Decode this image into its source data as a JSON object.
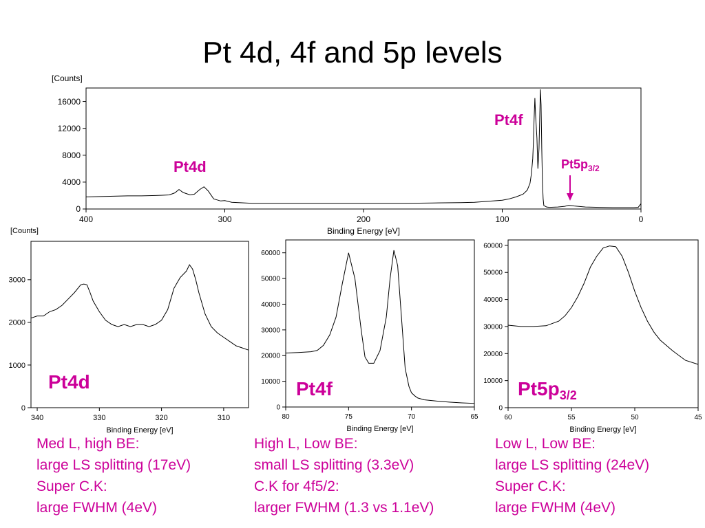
{
  "title": "Pt 4d, 4f and 5p levels",
  "colors": {
    "annotation": "#cc0099",
    "trace": "#000000"
  },
  "chart_data": [
    {
      "id": "survey",
      "type": "line",
      "ylabel": "[Counts]",
      "xlabel": "Binding Energy [eV]",
      "xlim": [
        400,
        0
      ],
      "ylim": [
        0,
        18000
      ],
      "xticks": [
        "400",
        "300",
        "200",
        "100",
        "0"
      ],
      "yticks": [
        "0",
        "4000",
        "8000",
        "12000",
        "16000"
      ],
      "annotations": {
        "pt4d": "Pt4d",
        "pt4f": "Pt4f",
        "pt5p_main": "Pt5p",
        "pt5p_sub": "3/2"
      },
      "series": [
        {
          "x": [
            402,
            390,
            380,
            370,
            360,
            350,
            345,
            340,
            336,
            333,
            330,
            325,
            322,
            318,
            315,
            312,
            308,
            303,
            300,
            295,
            290,
            285,
            280,
            270,
            250,
            230,
            200,
            170,
            150,
            130,
            120,
            110,
            100,
            95,
            90,
            85,
            82,
            80,
            79,
            78,
            77.5,
            77,
            76.5,
            76,
            75,
            74.3,
            73.5,
            73,
            72.5,
            72,
            71.5,
            71,
            70.5,
            70,
            69,
            68,
            66,
            60,
            55,
            52,
            48,
            40,
            30,
            20,
            10,
            5,
            2,
            0
          ],
          "y": [
            1800,
            1850,
            1900,
            1950,
            1950,
            2000,
            2050,
            2100,
            2400,
            2900,
            2450,
            2100,
            2200,
            2900,
            3300,
            2700,
            1500,
            1200,
            1250,
            1000,
            950,
            900,
            850,
            850,
            850,
            850,
            850,
            850,
            900,
            950,
            1000,
            1150,
            1300,
            1500,
            1800,
            2200,
            2800,
            3800,
            5200,
            7500,
            10000,
            13500,
            16500,
            14000,
            10500,
            6000,
            9000,
            13500,
            17800,
            15500,
            9000,
            4000,
            1500,
            500,
            400,
            300,
            250,
            300,
            400,
            550,
            450,
            300,
            250,
            200,
            200,
            200,
            250,
            800
          ]
        }
      ]
    },
    {
      "id": "pt4d",
      "type": "line",
      "ylabel": "[Counts]",
      "xlabel": "Binding Energy [eV]",
      "xlim": [
        341,
        306
      ],
      "ylim": [
        0,
        3900
      ],
      "xticks": [
        "340",
        "330",
        "320",
        "310"
      ],
      "yticks": [
        "0",
        "1000",
        "2000",
        "3000"
      ],
      "label": "Pt4d",
      "series": [
        {
          "x": [
            341,
            340,
            339,
            338,
            337,
            336,
            335,
            334,
            333,
            332.5,
            332,
            331.5,
            331,
            330,
            329,
            328,
            327,
            326,
            325,
            324,
            323,
            322,
            321,
            320,
            319,
            318,
            317,
            316,
            315.5,
            315,
            314.5,
            314,
            313.5,
            313,
            312,
            311,
            310,
            309,
            308,
            307,
            306
          ],
          "y": [
            2100,
            2150,
            2150,
            2250,
            2300,
            2400,
            2550,
            2700,
            2880,
            2900,
            2880,
            2700,
            2500,
            2250,
            2050,
            1950,
            1900,
            1950,
            1900,
            1950,
            1950,
            1900,
            1950,
            2050,
            2300,
            2800,
            3050,
            3200,
            3350,
            3250,
            3000,
            2700,
            2450,
            2200,
            1900,
            1750,
            1650,
            1550,
            1450,
            1400,
            1350
          ]
        }
      ]
    },
    {
      "id": "pt4f",
      "type": "line",
      "xlabel": "Binding Energy [eV]",
      "xlim": [
        80,
        65
      ],
      "ylim": [
        0,
        65000
      ],
      "xticks": [
        "80",
        "75",
        "70",
        "65"
      ],
      "yticks": [
        "0",
        "10000",
        "20000",
        "30000",
        "40000",
        "50000",
        "60000"
      ],
      "label": "Pt4f",
      "series": [
        {
          "x": [
            80,
            79,
            78,
            77.5,
            77,
            76.5,
            76,
            75.5,
            75,
            74.5,
            74,
            73.7,
            73.4,
            73,
            72.5,
            72,
            71.7,
            71.4,
            71.1,
            70.8,
            70.5,
            70.2,
            70,
            69.7,
            69.5,
            69,
            68,
            67,
            66,
            65
          ],
          "y": [
            21000,
            21200,
            21500,
            22000,
            24000,
            28000,
            35000,
            48000,
            60000,
            50000,
            30000,
            19500,
            17000,
            17000,
            22000,
            35000,
            50000,
            61000,
            55000,
            35000,
            15000,
            8000,
            5500,
            4200,
            3500,
            2800,
            2300,
            1900,
            1600,
            1400
          ]
        }
      ]
    },
    {
      "id": "pt5p",
      "type": "line",
      "xlabel": "Binding Energy [eV]",
      "xlim": [
        60,
        45
      ],
      "ylim": [
        0,
        62000
      ],
      "xticks": [
        "60",
        "55",
        "50",
        "45"
      ],
      "yticks": [
        "0",
        "10000",
        "20000",
        "30000",
        "40000",
        "50000",
        "60000"
      ],
      "label_main": "Pt5p",
      "label_sub": "3/2",
      "series": [
        {
          "x": [
            60,
            59,
            58,
            57,
            56,
            55.5,
            55,
            54.5,
            54,
            53.5,
            53,
            52.5,
            52,
            51.5,
            51,
            50.5,
            50,
            49.5,
            49,
            48.5,
            48,
            47,
            46,
            45
          ],
          "y": [
            30500,
            30000,
            30000,
            30300,
            32000,
            34000,
            37000,
            41000,
            46000,
            52000,
            56000,
            59000,
            59800,
            59500,
            56000,
            50000,
            43000,
            37000,
            32000,
            28000,
            25000,
            21000,
            17500,
            16000
          ]
        }
      ]
    }
  ],
  "notes": [
    {
      "lines": [
        "Med L, high BE:",
        "large LS splitting (17eV)",
        "Super C.K:",
        "large FWHM (4eV)"
      ]
    },
    {
      "lines": [
        "High L, Low BE:",
        "small LS splitting (3.3eV)",
        "C.K for 4f5/2:",
        "larger FWHM (1.3 vs 1.1eV)"
      ]
    },
    {
      "lines": [
        "Low L, Low BE:",
        "large LS splitting (24eV)",
        "Super C.K:",
        "large FWHM (4eV)"
      ]
    }
  ]
}
